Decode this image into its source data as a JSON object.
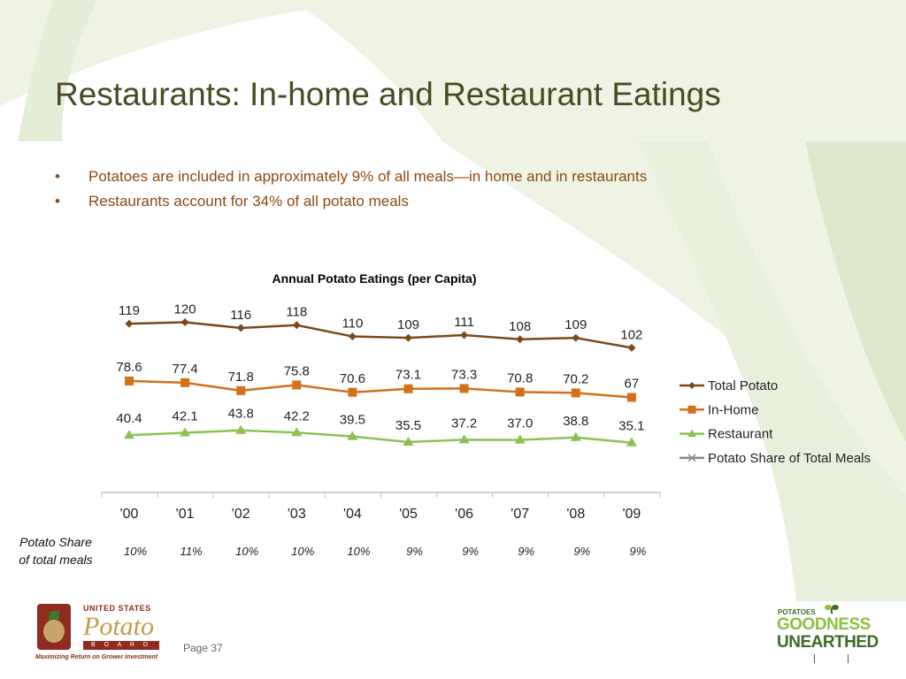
{
  "slide": {
    "title": "Restaurants: In-home and Restaurant Eatings",
    "bullets": [
      "Potatoes are included in approximately 9% of all meals—in home and in restaurants",
      "Restaurants account for 34% of all potato meals"
    ],
    "bullet_marker": "•",
    "page_label": "Page 37"
  },
  "share_row": {
    "label_line1": "Potato Share",
    "label_line2": "of total meals",
    "values": [
      "10%",
      "11%",
      "10%",
      "10%",
      "10%",
      "9%",
      "9%",
      "9%",
      "9%",
      "9%"
    ]
  },
  "logos": {
    "usp_line1": "UNITED STATES",
    "usp_line2": "Potato",
    "usp_line3": "B O A R D",
    "usp_tagline": "Maximizing Return on Grower Investment",
    "pgu_line1": "POTATOES",
    "pgu_line2": "GOODNESS",
    "pgu_line3": "UNEARTHED"
  },
  "colors": {
    "total_potato": "#7a4a1e",
    "in_home": "#d46f1a",
    "restaurant": "#8cc152",
    "share": "#8a8a8a",
    "decor_green": "#eef3e4"
  },
  "chart_data": {
    "type": "line",
    "title": "Annual Potato Eatings (per Capita)",
    "categories": [
      "'00",
      "'01",
      "'02",
      "'03",
      "'04",
      "'05",
      "'06",
      "'07",
      "'08",
      "'09"
    ],
    "series": [
      {
        "name": "Total Potato",
        "values": [
          119,
          120,
          116,
          118,
          110,
          109,
          111,
          108,
          109,
          102
        ],
        "labels": [
          "119",
          "120",
          "116",
          "118",
          "110",
          "109",
          "111",
          "108",
          "109",
          "102"
        ]
      },
      {
        "name": "In-Home",
        "values": [
          78.6,
          77.4,
          71.8,
          75.8,
          70.6,
          73.1,
          73.3,
          70.8,
          70.2,
          67
        ],
        "labels": [
          "78.6",
          "77.4",
          "71.8",
          "75.8",
          "70.6",
          "73.1",
          "73.3",
          "70.8",
          "70.2",
          "67"
        ]
      },
      {
        "name": "Restaurant",
        "values": [
          40.4,
          42.1,
          43.8,
          42.2,
          39.5,
          35.5,
          37.2,
          37.0,
          38.8,
          35.1
        ],
        "labels": [
          "40.4",
          "42.1",
          "43.8",
          "42.2",
          "39.5",
          "35.5",
          "37.2",
          "37.0",
          "38.8",
          "35.1"
        ]
      },
      {
        "name": "Potato Share of Total Meals",
        "values": [
          10,
          11,
          10,
          10,
          10,
          9,
          9,
          9,
          9,
          9
        ],
        "unit": "%",
        "plotted": false
      }
    ],
    "legend_position": "right",
    "grid": false,
    "y_axis_visible": false
  }
}
